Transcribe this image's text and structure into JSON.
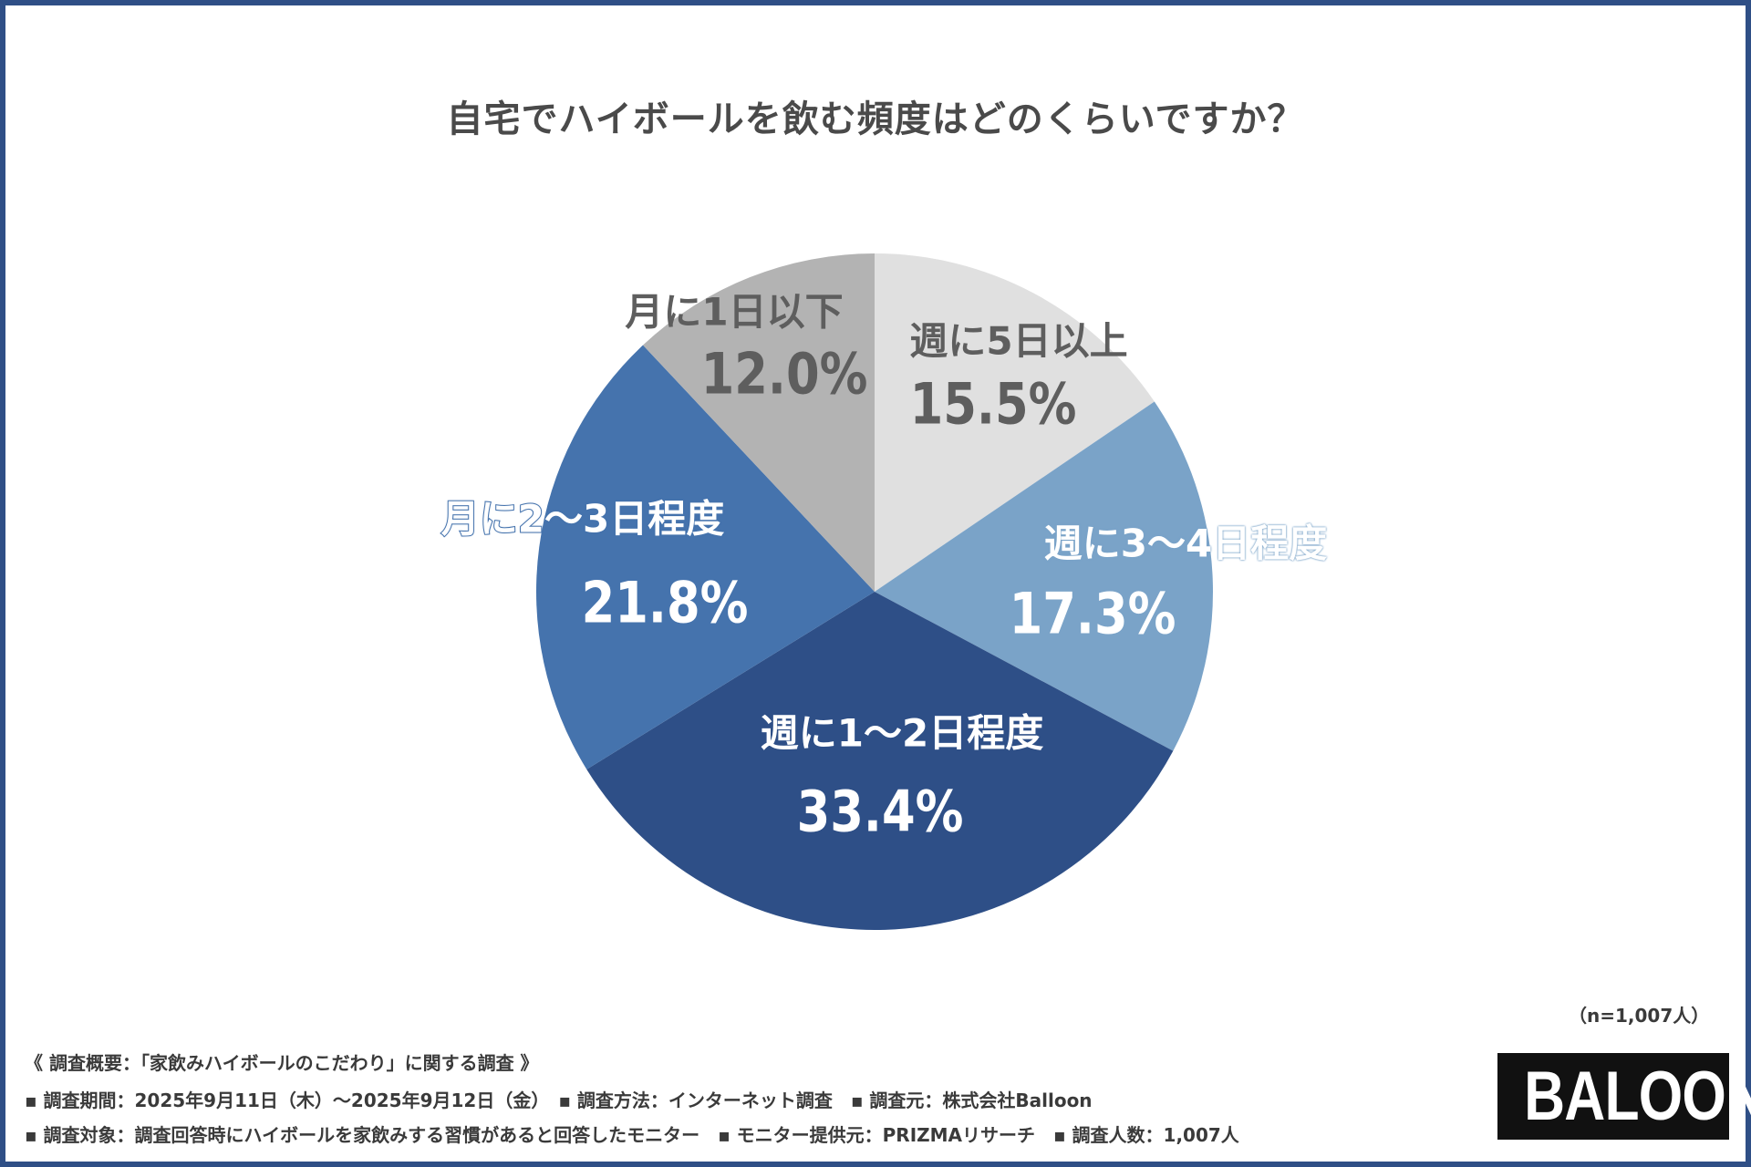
{
  "title": "自宅でハイボールを飲む頻度はどのくらいですか？",
  "chart_data": {
    "type": "pie",
    "title": "自宅でハイボールを飲む頻度はどのくらいですか？",
    "start": "top",
    "direction": "clockwise",
    "slices": [
      {
        "label": "週に5日以上",
        "value": 15.5,
        "display": "15.5%",
        "color": "#e0e0e0"
      },
      {
        "label": "週に3～4日程度",
        "value": 17.3,
        "display": "17.3%",
        "color": "#7aa3c8"
      },
      {
        "label": "週に1～2日程度",
        "value": 33.4,
        "display": "33.4%",
        "color": "#2e4f87"
      },
      {
        "label": "月に2～3日程度",
        "value": 21.8,
        "display": "21.8%",
        "color": "#4573ad"
      },
      {
        "label": "月に1日以下",
        "value": 12.0,
        "display": "12.0%",
        "color": "#b3b3b3"
      }
    ]
  },
  "sample_size": "（n=1,007人）",
  "notes": [
    "《 調査概要：「家飲みハイボールのこだわり」に関する調査 》",
    "▪ 調査期間：2025年9月11日（木）～2025年9月12日（金）　▪ 調査方法：インターネット調査　▪ 調査元：株式会社Balloon",
    "▪ 調査対象：調査回答時にハイボールを家飲みする習慣があると回答したモニター　▪ モニター提供元：PRIZMAリサーチ　▪ 調査人数：1,007人"
  ],
  "logo": "BALOON",
  "frame_color": "#2f4f86"
}
